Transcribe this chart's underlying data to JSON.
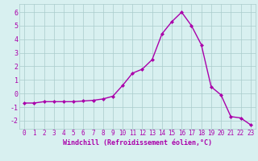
{
  "x": [
    0,
    1,
    2,
    3,
    4,
    5,
    6,
    7,
    8,
    9,
    10,
    11,
    12,
    13,
    14,
    15,
    16,
    17,
    18,
    19,
    20,
    21,
    22,
    23
  ],
  "y": [
    -0.7,
    -0.7,
    -0.6,
    -0.6,
    -0.6,
    -0.6,
    -0.55,
    -0.5,
    -0.4,
    -0.2,
    0.6,
    1.5,
    1.8,
    2.5,
    4.4,
    5.3,
    6.0,
    5.0,
    3.6,
    0.5,
    -0.1,
    -1.7,
    -1.8,
    -2.3
  ],
  "line_color": "#aa00aa",
  "marker": "D",
  "markersize": 2.0,
  "linewidth": 1.0,
  "bg_color": "#d8f0f0",
  "grid_color": "#aacccc",
  "xlabel": "Windchill (Refroidissement éolien,°C)",
  "xlabel_color": "#aa00aa",
  "xlim": [
    -0.5,
    23.5
  ],
  "ylim": [
    -2.6,
    6.6
  ],
  "yticks": [
    -2,
    -1,
    0,
    1,
    2,
    3,
    4,
    5,
    6
  ],
  "xticks": [
    0,
    1,
    2,
    3,
    4,
    5,
    6,
    7,
    8,
    9,
    10,
    11,
    12,
    13,
    14,
    15,
    16,
    17,
    18,
    19,
    20,
    21,
    22,
    23
  ],
  "tick_fontsize": 5.5,
  "xlabel_fontsize": 6.0,
  "ytick_fontsize": 6.0
}
